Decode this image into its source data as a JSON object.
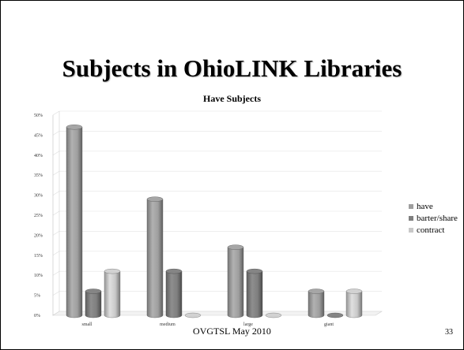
{
  "slide": {
    "title": "Subjects in OhioLINK  Libraries",
    "footer": "OVGTSL May 2010",
    "page_number": "33"
  },
  "colors": {
    "have": "#9e9e9e",
    "barter/share": "#7f7f7f",
    "contract": "#c8c8c8"
  },
  "chart_data": {
    "type": "bar",
    "title": "Have Subjects",
    "categories": [
      "small",
      "medium",
      "large",
      "giant"
    ],
    "series": [
      {
        "name": "have",
        "values": [
          47,
          29,
          17,
          6
        ]
      },
      {
        "name": "barter/share",
        "values": [
          6,
          11,
          11,
          0
        ]
      },
      {
        "name": "contract",
        "values": [
          11,
          0,
          0,
          6
        ]
      }
    ],
    "ylim": [
      0,
      50
    ],
    "yticks": [
      "0%",
      "5%",
      "10%",
      "15%",
      "20%",
      "25%",
      "30%",
      "35%",
      "40%",
      "45%",
      "50%"
    ],
    "legend_position": "right",
    "grid": true
  }
}
